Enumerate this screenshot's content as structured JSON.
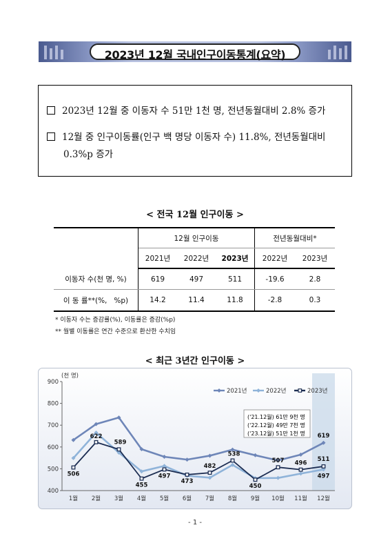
{
  "title": "2023년 12월 국내인구이동통계(요약)",
  "summary": {
    "line1": "2023년 12월 중 이동자 수 51만 1천 명, 전년동월대비 2.8% 증가",
    "line2": "12월 중 인구이동률(인구 백 명당 이동자 수) 11.8%, 전년동월대비",
    "line2_cont": "0.3%p 증가"
  },
  "table": {
    "title": "< 전국 12월 인구이동 >",
    "group1": "12월 인구이동",
    "group2": "전년동월대비*",
    "years": [
      "2021년",
      "2022년",
      "2023년"
    ],
    "diff_years": [
      "2022년",
      "2023년"
    ],
    "rows": [
      {
        "label": "이동자 수(천 명, %)",
        "values": [
          "619",
          "497",
          "511"
        ],
        "diffs": [
          "-19.6",
          "2.8"
        ]
      },
      {
        "label": "이 동 률**(%,   %p)",
        "values": [
          "14.2",
          "11.4",
          "11.8"
        ],
        "diffs": [
          "-2.8",
          "0.3"
        ]
      }
    ],
    "note1": "* 이동자 수는 증감률(%), 이동률은 증감(%p)",
    "note2": "** 월별 이동률은 연간 수준으로 환산한 수치임"
  },
  "chart_title": "< 최근 3년간 인구이동 >",
  "chart_data": {
    "type": "line",
    "unit_label": "(천 명)",
    "categories": [
      "1월",
      "2월",
      "3월",
      "4월",
      "5월",
      "6월",
      "7월",
      "8월",
      "9월",
      "10월",
      "11월",
      "12월"
    ],
    "ylim": [
      400,
      900
    ],
    "yticks": [
      400,
      500,
      600,
      700,
      800,
      900
    ],
    "series": [
      {
        "name": "2021년",
        "color": "#6e86b8",
        "values": [
          632,
          705,
          735,
          590,
          555,
          542,
          560,
          588,
          562,
          538,
          565,
          619
        ]
      },
      {
        "name": "2022년",
        "color": "#8fb3d9",
        "values": [
          549,
          666,
          574,
          488,
          513,
          468,
          459,
          518,
          457,
          458,
          478,
          497
        ]
      },
      {
        "name": "2023년",
        "color": "#1c2d52",
        "values": [
          506,
          622,
          589,
          455,
          497,
          473,
          482,
          538,
          450,
          507,
          496,
          511
        ]
      }
    ],
    "data_labels": [
      {
        "series": 2,
        "index": 0,
        "text": "506"
      },
      {
        "series": 2,
        "index": 1,
        "text": "622"
      },
      {
        "series": 2,
        "index": 2,
        "text": "589"
      },
      {
        "series": 2,
        "index": 3,
        "text": "455"
      },
      {
        "series": 2,
        "index": 4,
        "text": "497"
      },
      {
        "series": 2,
        "index": 5,
        "text": "473"
      },
      {
        "series": 2,
        "index": 6,
        "text": "482"
      },
      {
        "series": 2,
        "index": 7,
        "text": "538"
      },
      {
        "series": 2,
        "index": 8,
        "text": "450"
      },
      {
        "series": 2,
        "index": 9,
        "text": "507"
      },
      {
        "series": 2,
        "index": 10,
        "text": "496"
      },
      {
        "series": 0,
        "index": 11,
        "text": "619"
      },
      {
        "series": 2,
        "index": 11,
        "text": "511"
      },
      {
        "series": 1,
        "index": 11,
        "text": "497"
      }
    ],
    "annotations": [
      "('21.12월) 61만 9천 명",
      "('22.12월) 49만 7천 명",
      "('23.12월) 51만 1천 명"
    ],
    "highlight_category": "12월",
    "legend_position": "top-right",
    "grid": false
  },
  "page_number": "- 1 -"
}
